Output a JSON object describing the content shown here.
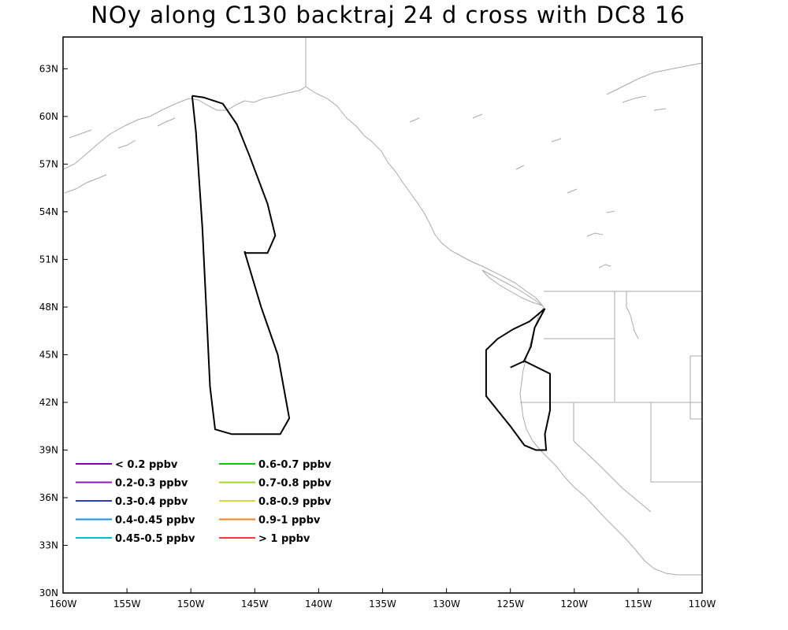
{
  "title": "NOy along C130 backtraj 24 d cross with DC8 16",
  "map": {
    "lon_range": [
      -160,
      -110
    ],
    "lat_range": [
      30,
      65
    ],
    "x_ticks": [
      {
        "lon": -160,
        "label": "160W"
      },
      {
        "lon": -155,
        "label": "155W"
      },
      {
        "lon": -150,
        "label": "150W"
      },
      {
        "lon": -145,
        "label": "145W"
      },
      {
        "lon": -140,
        "label": "140W"
      },
      {
        "lon": -135,
        "label": "135W"
      },
      {
        "lon": -130,
        "label": "130W"
      },
      {
        "lon": -125,
        "label": "125W"
      },
      {
        "lon": -120,
        "label": "120W"
      },
      {
        "lon": -115,
        "label": "115W"
      },
      {
        "lon": -110,
        "label": "110W"
      }
    ],
    "y_ticks": [
      {
        "lat": 30,
        "label": "30N"
      },
      {
        "lat": 33,
        "label": "33N"
      },
      {
        "lat": 36,
        "label": "36N"
      },
      {
        "lat": 39,
        "label": "39N"
      },
      {
        "lat": 42,
        "label": "42N"
      },
      {
        "lat": 45,
        "label": "45N"
      },
      {
        "lat": 48,
        "label": "48N"
      },
      {
        "lat": 51,
        "label": "51N"
      },
      {
        "lat": 54,
        "label": "54N"
      },
      {
        "lat": 57,
        "label": "57N"
      },
      {
        "lat": 60,
        "label": "60N"
      },
      {
        "lat": 63,
        "label": "63N"
      }
    ],
    "land_color": "#aaaaaa",
    "track_color": "#000000"
  },
  "legend": {
    "items": [
      {
        "label": "< 0.2 ppbv",
        "color": "#8000c0"
      },
      {
        "label": "0.2-0.3 ppbv",
        "color": "#8c1ab4"
      },
      {
        "label": "0.3-0.4 ppbv",
        "color": "#2a3cc0"
      },
      {
        "label": "0.4-0.45 ppbv",
        "color": "#1890e8"
      },
      {
        "label": "0.45-0.5 ppbv",
        "color": "#00bcd0"
      },
      {
        "label": "0.6-0.7 ppbv",
        "color": "#00cc00"
      },
      {
        "label": "0.7-0.8 ppbv",
        "color": "#9ed82a"
      },
      {
        "label": "0.8-0.9 ppbv",
        "color": "#d8d840"
      },
      {
        "label": "0.9-1 ppbv",
        "color": "#f08020"
      },
      {
        "label": "> 1 ppbv",
        "color": "#f03c3c"
      }
    ]
  },
  "tracks": [
    {
      "name": "trajectory-west",
      "points": [
        [
          -149.9,
          61.3
        ],
        [
          -149.6,
          59.0
        ],
        [
          -149.1,
          53.0
        ],
        [
          -148.8,
          48.0
        ],
        [
          -148.5,
          43.0
        ],
        [
          -148.1,
          40.3
        ],
        [
          -146.8,
          40.0
        ],
        [
          -143.0,
          40.0
        ],
        [
          -142.3,
          41.0
        ],
        [
          -143.2,
          45.0
        ],
        [
          -144.5,
          48.0
        ],
        [
          -145.8,
          51.5
        ],
        [
          -145.7,
          51.4
        ],
        [
          -144.0,
          51.4
        ],
        [
          -143.4,
          52.5
        ],
        [
          -144.0,
          54.5
        ],
        [
          -145.4,
          57.5
        ],
        [
          -146.4,
          59.5
        ],
        [
          -147.5,
          60.8
        ],
        [
          -149.0,
          61.2
        ],
        [
          -149.9,
          61.3
        ]
      ]
    },
    {
      "name": "trajectory-east",
      "points": [
        [
          -125.0,
          44.2
        ],
        [
          -123.9,
          44.6
        ],
        [
          -121.9,
          43.8
        ],
        [
          -121.9,
          41.5
        ],
        [
          -122.3,
          40.0
        ],
        [
          -122.2,
          39.0
        ],
        [
          -123.0,
          39.0
        ],
        [
          -123.9,
          39.3
        ],
        [
          -125.0,
          40.5
        ],
        [
          -126.3,
          41.8
        ],
        [
          -126.9,
          42.4
        ],
        [
          -126.9,
          45.3
        ],
        [
          -126.0,
          46.0
        ],
        [
          -124.8,
          46.6
        ],
        [
          -123.5,
          47.1
        ],
        [
          -122.3,
          47.9
        ],
        [
          -123.1,
          46.7
        ],
        [
          -123.4,
          45.5
        ],
        [
          -124.0,
          44.5
        ]
      ]
    }
  ]
}
